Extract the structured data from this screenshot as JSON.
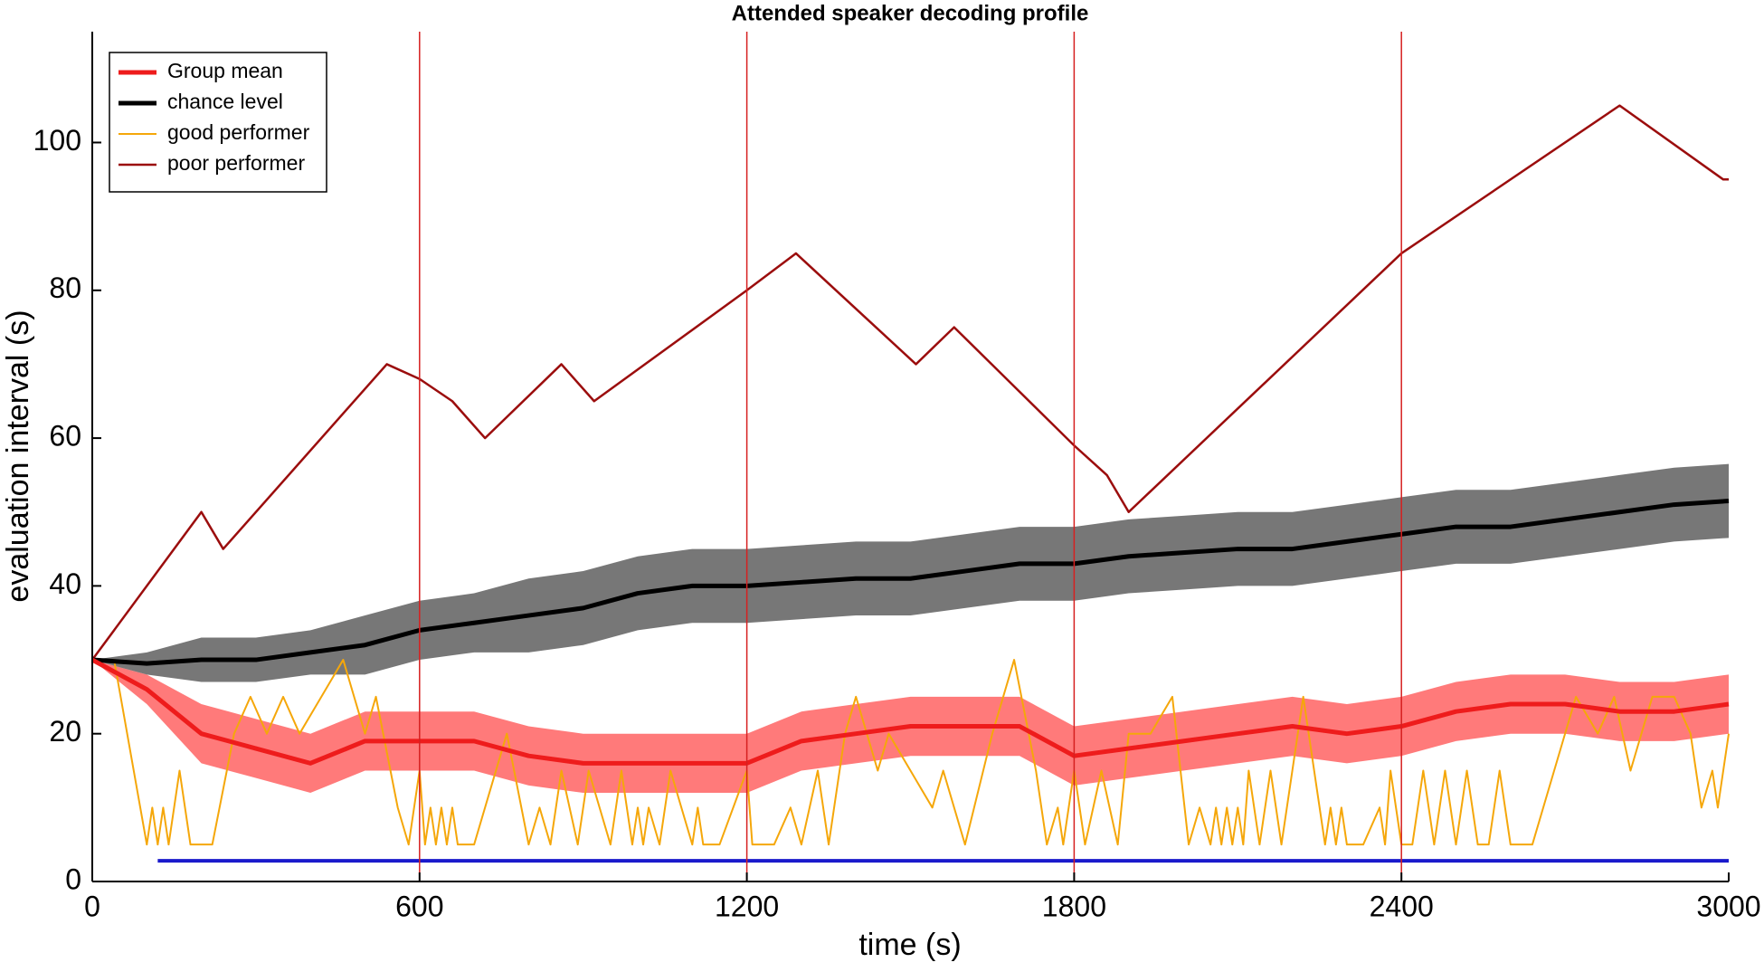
{
  "chart_data": {
    "type": "line",
    "title": "Attended speaker decoding profile",
    "x_label": "time (s)",
    "y_label": "evaluation interval (s)",
    "xlim": [
      0,
      3000
    ],
    "ylim": [
      0,
      115
    ],
    "xticks": [
      0,
      600,
      1200,
      1800,
      2400,
      3000
    ],
    "yticks": [
      0,
      20,
      40,
      60,
      80,
      100
    ],
    "legend": "upper left",
    "vlines": {
      "color": "#d62020",
      "x": [
        600,
        1200,
        1800,
        2400
      ]
    },
    "baseline": {
      "color": "#1a1acc",
      "x": [
        120,
        3000
      ],
      "values": [
        2.8,
        2.8
      ]
    },
    "series": [
      {
        "name": "Group mean",
        "color": "#ee1c1c",
        "band_color": "#ff7a7a",
        "width": 5,
        "x": [
          0,
          100,
          200,
          300,
          400,
          500,
          600,
          700,
          800,
          900,
          1000,
          1100,
          1200,
          1300,
          1400,
          1500,
          1600,
          1700,
          1800,
          1900,
          2000,
          2100,
          2200,
          2300,
          2400,
          2500,
          2600,
          2700,
          2800,
          2900,
          3000
        ],
        "values": [
          30,
          26,
          20,
          18,
          16,
          19,
          19,
          19,
          17,
          16,
          16,
          16,
          16,
          19,
          20,
          21,
          21,
          21,
          17,
          18,
          19,
          20,
          21,
          20,
          21,
          23,
          24,
          24,
          23,
          23,
          24
        ],
        "lower": [
          30,
          24,
          16,
          14,
          12,
          15,
          15,
          15,
          13,
          12,
          12,
          12,
          12,
          15,
          16,
          17,
          17,
          17,
          13,
          14,
          15,
          16,
          17,
          16,
          17,
          19,
          20,
          20,
          19,
          19,
          20
        ],
        "upper": [
          30,
          28,
          24,
          22,
          20,
          23,
          23,
          23,
          21,
          20,
          20,
          20,
          20,
          23,
          24,
          25,
          25,
          25,
          21,
          22,
          23,
          24,
          25,
          24,
          25,
          27,
          28,
          28,
          27,
          27,
          28
        ]
      },
      {
        "name": "chance level",
        "color": "#000000",
        "band_color": "#777777",
        "width": 5,
        "x": [
          0,
          100,
          200,
          300,
          400,
          500,
          600,
          700,
          800,
          900,
          1000,
          1100,
          1200,
          1300,
          1400,
          1500,
          1600,
          1700,
          1800,
          1900,
          2000,
          2100,
          2200,
          2300,
          2400,
          2500,
          2600,
          2700,
          2800,
          2900,
          3000
        ],
        "values": [
          30,
          29.5,
          30,
          30,
          31,
          32,
          34,
          35,
          36,
          37,
          39,
          40,
          40,
          40.5,
          41,
          41,
          42,
          43,
          43,
          44,
          44.5,
          45,
          45,
          46,
          47,
          48,
          48,
          49,
          50,
          51,
          51.5
        ],
        "lower": [
          30,
          28,
          27,
          27,
          28,
          28,
          30,
          31,
          31,
          32,
          34,
          35,
          35,
          35.5,
          36,
          36,
          37,
          38,
          38,
          39,
          39.5,
          40,
          40,
          41,
          42,
          43,
          43,
          44,
          45,
          46,
          46.5
        ],
        "upper": [
          30,
          31,
          33,
          33,
          34,
          36,
          38,
          39,
          41,
          42,
          44,
          45,
          45,
          45.5,
          46,
          46,
          47,
          48,
          48,
          49,
          49.5,
          50,
          50,
          51,
          52,
          53,
          53,
          54,
          55,
          56,
          56.5
        ]
      },
      {
        "name": "good performer",
        "color": "#f5a70a",
        "width": 2,
        "x": [
          0,
          40,
          100,
          110,
          120,
          130,
          140,
          160,
          180,
          220,
          260,
          290,
          320,
          350,
          380,
          420,
          460,
          500,
          520,
          560,
          580,
          600,
          610,
          620,
          630,
          640,
          650,
          660,
          670,
          700,
          760,
          800,
          820,
          840,
          860,
          890,
          910,
          930,
          950,
          970,
          990,
          1000,
          1010,
          1020,
          1040,
          1060,
          1100,
          1110,
          1120,
          1150,
          1200,
          1210,
          1250,
          1280,
          1300,
          1330,
          1350,
          1380,
          1400,
          1440,
          1460,
          1500,
          1540,
          1560,
          1600,
          1650,
          1690,
          1730,
          1750,
          1770,
          1780,
          1800,
          1820,
          1850,
          1880,
          1900,
          1940,
          1980,
          2010,
          2030,
          2050,
          2060,
          2070,
          2080,
          2090,
          2100,
          2110,
          2120,
          2140,
          2160,
          2180,
          2220,
          2260,
          2270,
          2280,
          2290,
          2300,
          2330,
          2360,
          2370,
          2380,
          2400,
          2420,
          2440,
          2460,
          2480,
          2500,
          2520,
          2540,
          2560,
          2580,
          2600,
          2640,
          2680,
          2720,
          2760,
          2790,
          2820,
          2860,
          2900,
          2930,
          2950,
          2970,
          2980,
          3000
        ],
        "values": [
          30,
          30,
          5,
          10,
          5,
          10,
          5,
          15,
          5,
          5,
          20,
          25,
          20,
          25,
          20,
          25,
          30,
          20,
          25,
          10,
          5,
          15,
          5,
          10,
          5,
          10,
          5,
          10,
          5,
          5,
          20,
          5,
          10,
          5,
          15,
          5,
          15,
          10,
          5,
          15,
          5,
          10,
          5,
          10,
          5,
          15,
          5,
          10,
          5,
          5,
          15,
          5,
          5,
          10,
          5,
          15,
          5,
          20,
          25,
          15,
          20,
          15,
          10,
          15,
          5,
          20,
          30,
          15,
          5,
          10,
          5,
          15,
          5,
          15,
          5,
          20,
          20,
          25,
          5,
          10,
          5,
          10,
          5,
          10,
          5,
          10,
          5,
          15,
          5,
          15,
          5,
          25,
          5,
          10,
          5,
          10,
          5,
          5,
          10,
          5,
          15,
          5,
          5,
          15,
          5,
          15,
          5,
          15,
          5,
          5,
          15,
          5,
          5,
          15,
          25,
          20,
          25,
          15,
          25,
          25,
          20,
          10,
          15,
          10,
          20
        ]
      },
      {
        "name": "poor performer",
        "color": "#9b0d0d",
        "width": 2.5,
        "x": [
          0,
          200,
          240,
          540,
          600,
          660,
          720,
          860,
          920,
          1200,
          1290,
          1510,
          1580,
          1800,
          1860,
          1900,
          2400,
          2800,
          2990,
          3000
        ],
        "values": [
          30,
          50,
          45,
          70,
          68,
          65,
          60,
          70,
          65,
          80,
          85,
          70,
          75,
          59,
          55,
          50,
          85,
          105,
          95,
          95
        ]
      }
    ]
  }
}
